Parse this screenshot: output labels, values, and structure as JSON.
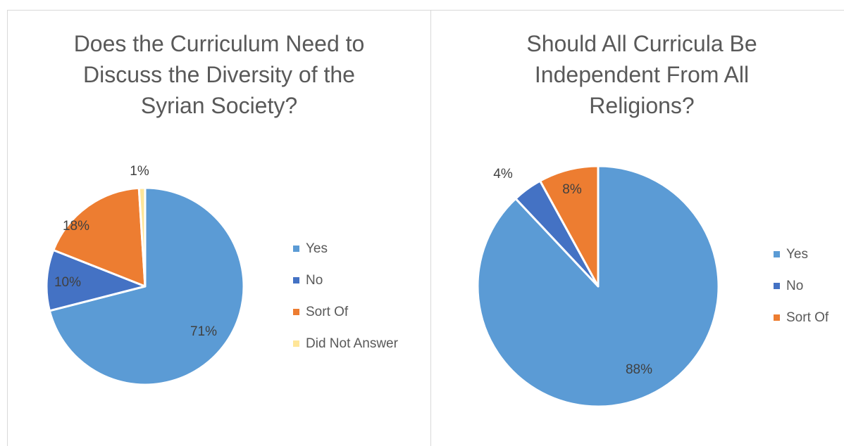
{
  "chart_data": [
    {
      "type": "pie",
      "title_lines": [
        "Does the Curriculum Need to",
        "Discuss the Diversity of the",
        "Syrian Society?"
      ],
      "labels": [
        "Yes",
        "No",
        "Sort Of",
        "Did Not Answer"
      ],
      "values": [
        71,
        10,
        18,
        1
      ],
      "data_labels": [
        "71%",
        "10%",
        "18%",
        "1%"
      ],
      "colors": [
        "#5B9BD5",
        "#4472C4",
        "#ED7D31",
        "#FFE699"
      ],
      "legend_position": "right"
    },
    {
      "type": "pie",
      "title_lines": [
        "Should All Curricula Be",
        "Independent From All",
        "Religions?"
      ],
      "labels": [
        "Yes",
        "No",
        "Sort Of"
      ],
      "values": [
        88,
        4,
        8
      ],
      "data_labels": [
        "88%",
        "4%",
        "8%"
      ],
      "colors": [
        "#5B9BD5",
        "#4472C4",
        "#ED7D31"
      ],
      "legend_position": "right"
    }
  ]
}
